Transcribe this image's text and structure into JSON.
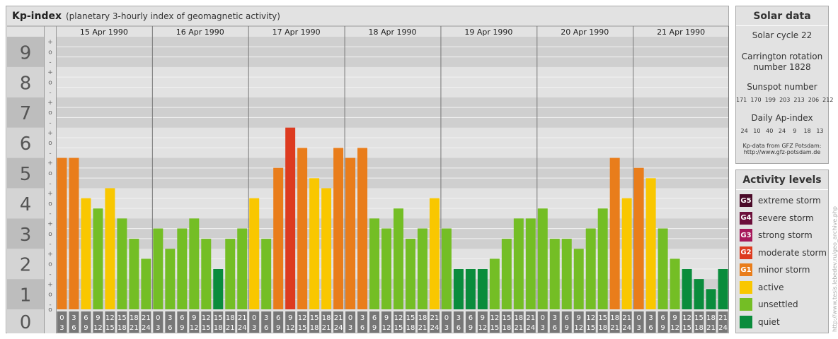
{
  "header": {
    "title": "Kp-index",
    "subtitle": "(planetary 3-hourly index of geomagnetic activity)"
  },
  "chart_data": {
    "type": "bar",
    "ylim": [
      0,
      9
    ],
    "y_ticks": [
      "0",
      "1",
      "2",
      "3",
      "4",
      "5",
      "6",
      "7",
      "8",
      "9"
    ],
    "minor_ticks": [
      "-",
      "o",
      "+"
    ],
    "days": [
      "15 Apr 1990",
      "16 Apr 1990",
      "17 Apr 1990",
      "18 Apr 1990",
      "19 Apr 1990",
      "20 Apr 1990",
      "21 Apr 1990"
    ],
    "hour_labels": [
      [
        "0",
        "3"
      ],
      [
        "3",
        "6"
      ],
      [
        "6",
        "9"
      ],
      [
        "9",
        "12"
      ],
      [
        "12",
        "15"
      ],
      [
        "15",
        "18"
      ],
      [
        "18",
        "21"
      ],
      [
        "21",
        "24"
      ]
    ],
    "values": [
      [
        5.0,
        5.0,
        3.67,
        3.33,
        4.0,
        3.0,
        2.33,
        1.67
      ],
      [
        2.67,
        2.0,
        2.67,
        3.0,
        2.33,
        1.33,
        2.33,
        2.67
      ],
      [
        3.67,
        2.33,
        4.67,
        6.0,
        5.33,
        4.33,
        4.0,
        5.33
      ],
      [
        5.0,
        5.33,
        3.0,
        2.67,
        3.33,
        2.33,
        2.67,
        3.67
      ],
      [
        2.67,
        1.33,
        1.33,
        1.33,
        1.67,
        2.33,
        3.0,
        3.0
      ],
      [
        3.33,
        2.33,
        2.33,
        2.0,
        2.67,
        3.33,
        5.0,
        3.67
      ],
      [
        4.67,
        4.33,
        2.67,
        1.67,
        1.33,
        1.0,
        0.67,
        1.33
      ]
    ],
    "level_colors": {
      "quiet": "#0a8c3c",
      "unsettled": "#74be25",
      "active": "#f9c700",
      "minor_storm": "#e97d1b",
      "moderate_storm": "#dd3b20",
      "strong_storm": "#a6195b",
      "severe_storm": "#6b0f3a",
      "extreme_storm": "#4a0a28"
    }
  },
  "solar_data": {
    "heading": "Solar data",
    "cycle": "Solar cycle 22",
    "carrington_line1": "Carrington rotation",
    "carrington_line2": "number 1828",
    "sunspot_label": "Sunspot number",
    "sunspot_values": "171  170  199  203  213  206  212",
    "ap_label": "Daily Ap-index",
    "ap_values": "24   10   40   24    9    18   13",
    "source_line1": "Kp-data from GFZ Potsdam:",
    "source_line2": "http://www.gfz-potsdam.de"
  },
  "activity_levels": {
    "heading": "Activity levels",
    "items": [
      {
        "code": "G5",
        "label": "extreme storm",
        "color": "#4a0a28"
      },
      {
        "code": "G4",
        "label": "severe storm",
        "color": "#6b0f3a"
      },
      {
        "code": "G3",
        "label": "strong storm",
        "color": "#a6195b"
      },
      {
        "code": "G2",
        "label": "moderate storm",
        "color": "#dd3b20"
      },
      {
        "code": "G1",
        "label": "minor storm",
        "color": "#e97d1b"
      },
      {
        "code": "",
        "label": "active",
        "color": "#f9c700"
      },
      {
        "code": "",
        "label": "unsettled",
        "color": "#74be25"
      },
      {
        "code": "",
        "label": "quiet",
        "color": "#0a8c3c"
      }
    ]
  },
  "copyright": "http://www.tesis.lebedev.ru/geo_archive.php"
}
